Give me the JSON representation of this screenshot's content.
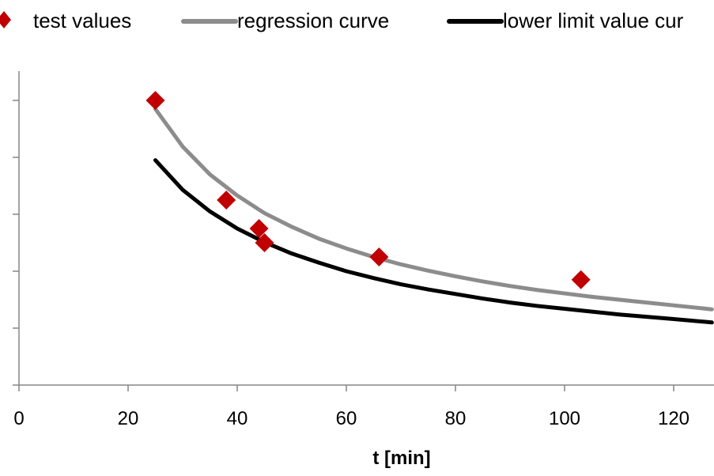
{
  "chart_data": {
    "type": "scatter",
    "title": "",
    "xlabel": "t [min]",
    "ylabel": "",
    "xlim": [
      0,
      127
    ],
    "ylim": [
      0,
      5.5
    ],
    "x_ticks": [
      0,
      20,
      40,
      60,
      80,
      100,
      120
    ],
    "x_tick_labels": [
      "0",
      "20",
      "40",
      "60",
      "80",
      "100",
      "120"
    ],
    "y_ticks": [
      0,
      1,
      2,
      3,
      4,
      5
    ],
    "legend": [
      "test values",
      "regression curve",
      "lower limit value cur"
    ],
    "legend_position": "top",
    "grid": false,
    "series": [
      {
        "name": "test values",
        "kind": "markers",
        "marker": "diamond",
        "color": "#c00000",
        "x": [
          25,
          38,
          44,
          45,
          66,
          103
        ],
        "y": [
          5.0,
          3.25,
          2.75,
          2.5,
          2.25,
          1.85
        ]
      },
      {
        "name": "regression curve",
        "kind": "line",
        "color": "#8c8c8c",
        "x": [
          25,
          30,
          35,
          40,
          45,
          50,
          55,
          60,
          65,
          70,
          75,
          80,
          85,
          90,
          95,
          100,
          105,
          110,
          115,
          120,
          127
        ],
        "y": [
          4.85,
          4.19,
          3.7,
          3.33,
          3.02,
          2.78,
          2.57,
          2.4,
          2.25,
          2.12,
          2.01,
          1.91,
          1.82,
          1.74,
          1.67,
          1.61,
          1.55,
          1.5,
          1.45,
          1.4,
          1.33
        ]
      },
      {
        "name": "lower limit value cur",
        "kind": "line",
        "color": "#000000",
        "x": [
          25,
          30,
          35,
          40,
          45,
          50,
          55,
          60,
          65,
          70,
          75,
          80,
          85,
          90,
          95,
          100,
          105,
          110,
          115,
          120,
          127
        ],
        "y": [
          3.95,
          3.43,
          3.05,
          2.75,
          2.51,
          2.31,
          2.15,
          2.0,
          1.88,
          1.77,
          1.68,
          1.6,
          1.52,
          1.45,
          1.39,
          1.34,
          1.29,
          1.24,
          1.2,
          1.16,
          1.1
        ]
      }
    ]
  }
}
